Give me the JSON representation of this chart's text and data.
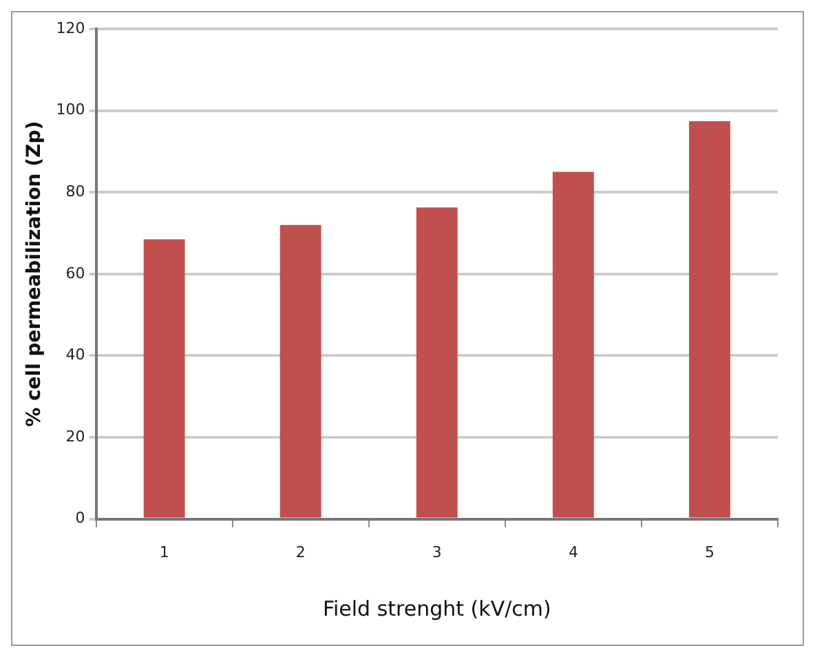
{
  "chart_data": {
    "type": "bar",
    "xlabel": "Field strenght (kV/cm)",
    "ylabel": "% cell permeabilization (Zp)",
    "categories": [
      "1",
      "2",
      "3",
      "4",
      "5"
    ],
    "values": [
      68.5,
      72,
      76.3,
      85,
      97.4
    ],
    "color": "#c0504d",
    "ylim": [
      0,
      120
    ],
    "yticks": [
      0,
      20,
      40,
      60,
      80,
      100,
      120
    ],
    "grid": "y",
    "legend": false
  }
}
